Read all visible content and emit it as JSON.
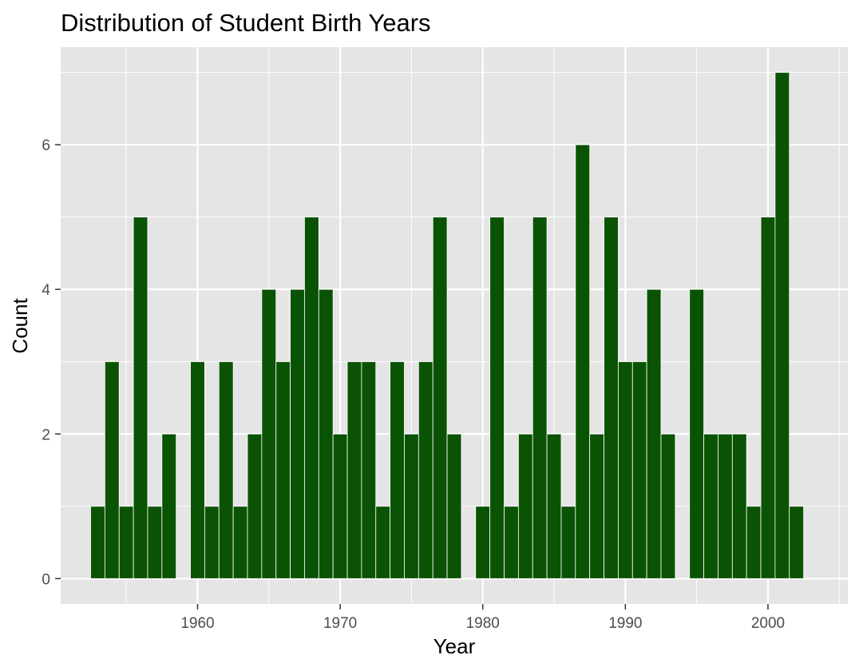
{
  "chart_data": {
    "type": "bar",
    "title": "Distribution of Student Birth Years",
    "xlabel": "Year",
    "ylabel": "Count",
    "x": [
      1953,
      1954,
      1955,
      1956,
      1957,
      1958,
      1960,
      1961,
      1962,
      1963,
      1964,
      1965,
      1966,
      1967,
      1968,
      1969,
      1970,
      1971,
      1972,
      1973,
      1974,
      1975,
      1976,
      1977,
      1978,
      1980,
      1981,
      1982,
      1983,
      1984,
      1985,
      1986,
      1987,
      1988,
      1989,
      1990,
      1991,
      1992,
      1993,
      1995,
      1996,
      1997,
      1998,
      1999,
      2000,
      2001,
      2002
    ],
    "values": [
      1,
      3,
      1,
      5,
      1,
      2,
      3,
      1,
      3,
      1,
      2,
      4,
      3,
      4,
      5,
      4,
      2,
      3,
      3,
      1,
      3,
      2,
      3,
      5,
      2,
      1,
      5,
      1,
      2,
      5,
      2,
      1,
      6,
      2,
      5,
      3,
      3,
      4,
      2,
      4,
      2,
      2,
      2,
      1,
      5,
      7,
      1
    ],
    "xlim": [
      1950.4,
      2005.6
    ],
    "ylim": [
      -0.35,
      7.35
    ],
    "x_ticks": [
      1960,
      1970,
      1980,
      1990,
      2000
    ],
    "x_tick_labels": [
      "1960",
      "1970",
      "1980",
      "1990",
      "2000"
    ],
    "y_ticks": [
      0,
      2,
      4,
      6
    ],
    "y_tick_labels": [
      "0",
      "2",
      "4",
      "6"
    ],
    "grid": true,
    "legend": "none",
    "colors": {
      "bar": "#0b5304",
      "panel": "#e5e5e5",
      "grid": "#ffffff"
    }
  }
}
